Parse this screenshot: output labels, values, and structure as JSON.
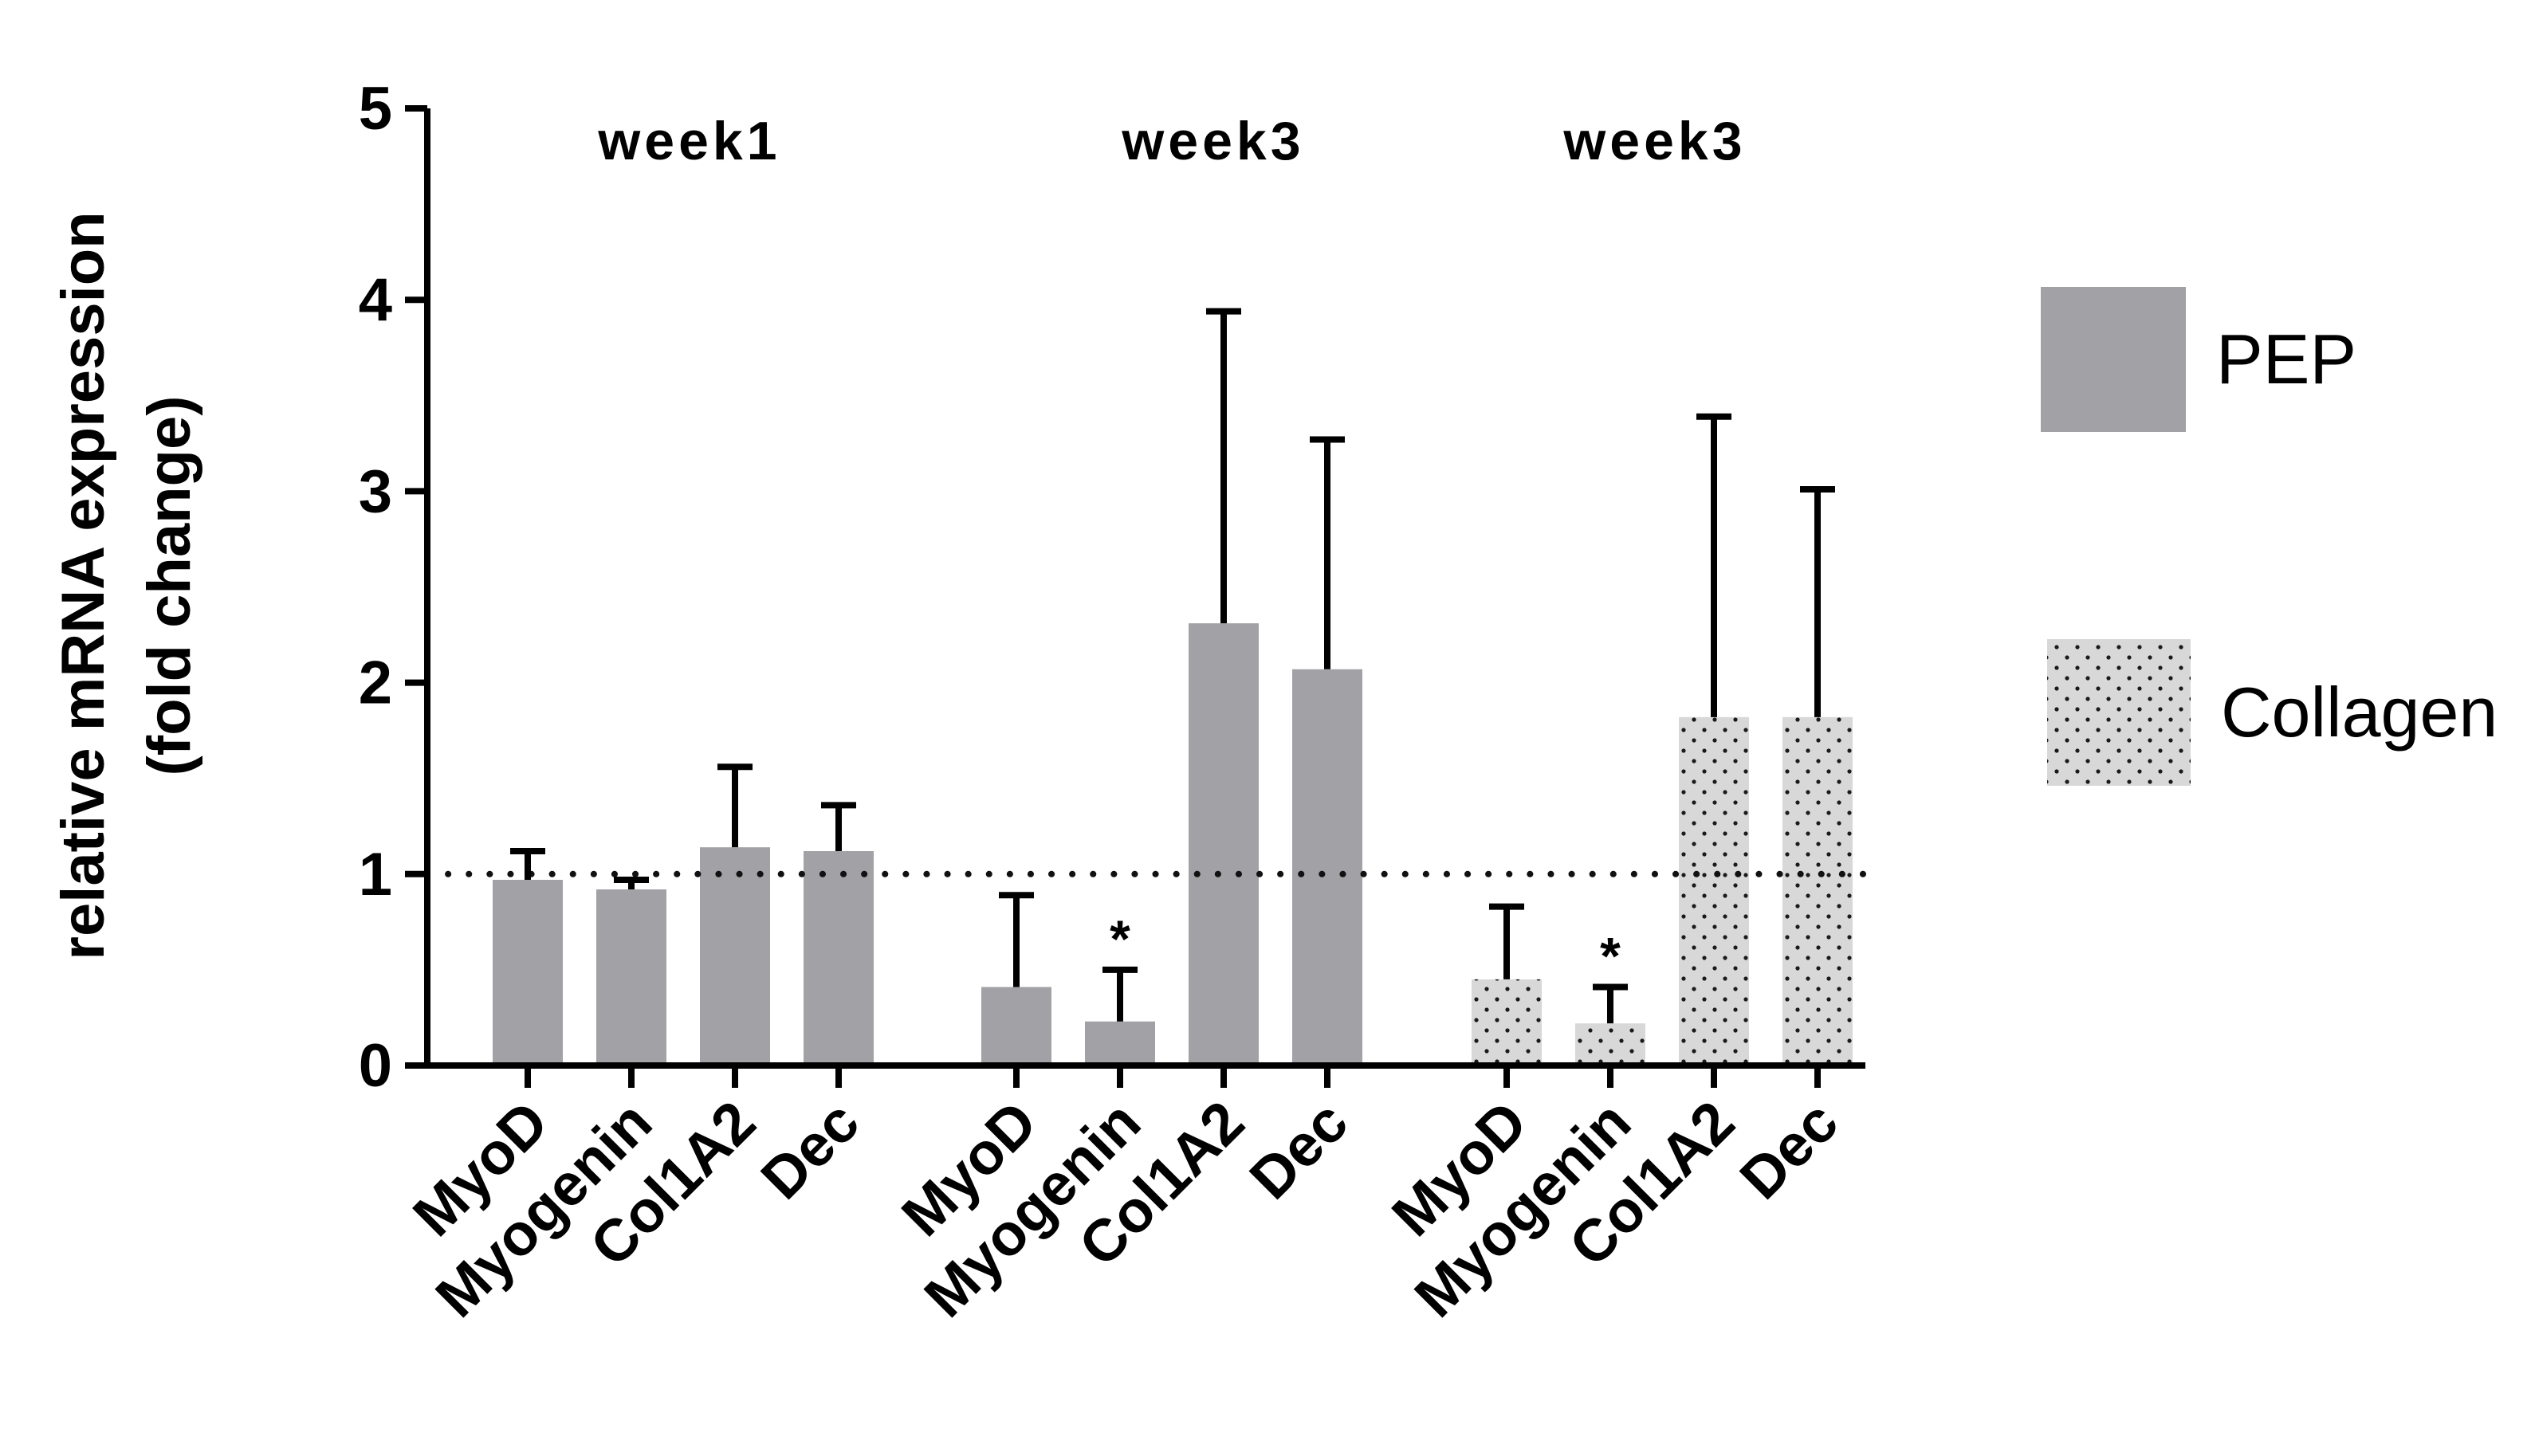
{
  "chart_data": {
    "type": "bar",
    "ylabel_line1": "relative mRNA expression",
    "ylabel_line2": "(fold change)",
    "ylim": [
      0,
      5
    ],
    "yticks": [
      "0",
      "1",
      "2",
      "3",
      "4",
      "5"
    ],
    "reference_line": 1,
    "groups": [
      {
        "title": "week1",
        "series": "PEP",
        "bars": [
          {
            "label": "MyoD",
            "value": 0.97,
            "error": 0.15,
            "mark": ""
          },
          {
            "label": "Myogenin",
            "value": 0.92,
            "error": 0.05,
            "mark": ""
          },
          {
            "label": "Col1A2",
            "value": 1.14,
            "error": 0.42,
            "mark": ""
          },
          {
            "label": "Dec",
            "value": 1.12,
            "error": 0.24,
            "mark": ""
          }
        ]
      },
      {
        "title": "week3",
        "series": "PEP",
        "bars": [
          {
            "label": "MyoD",
            "value": 0.41,
            "error": 0.48,
            "mark": ""
          },
          {
            "label": "Myogenin",
            "value": 0.23,
            "error": 0.27,
            "mark": "*"
          },
          {
            "label": "Col1A2",
            "value": 2.31,
            "error": 1.63,
            "mark": ""
          },
          {
            "label": "Dec",
            "value": 2.07,
            "error": 1.2,
            "mark": ""
          }
        ]
      },
      {
        "title": "week3",
        "series": "Collagen",
        "bars": [
          {
            "label": "MyoD",
            "value": 0.45,
            "error": 0.38,
            "mark": ""
          },
          {
            "label": "Myogenin",
            "value": 0.22,
            "error": 0.19,
            "mark": "*"
          },
          {
            "label": "Col1A2",
            "value": 1.82,
            "error": 1.57,
            "mark": ""
          },
          {
            "label": "Dec",
            "value": 1.82,
            "error": 1.19,
            "mark": ""
          }
        ]
      }
    ],
    "legend": [
      {
        "name": "PEP",
        "color": "#a2a1a6",
        "pattern": "solid"
      },
      {
        "name": "Collagen",
        "color": "#d8d8d8",
        "pattern": "dots"
      }
    ]
  }
}
